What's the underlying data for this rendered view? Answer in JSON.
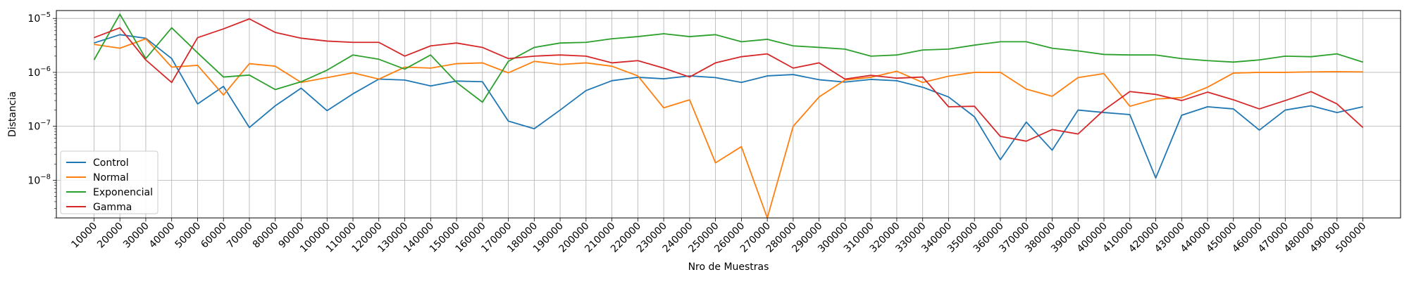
{
  "chart_data": {
    "type": "line",
    "title": "",
    "xlabel": "Nro de Muestras",
    "ylabel": "Distancia",
    "yscale": "log",
    "ylim": [
      2e-09,
      1.4e-05
    ],
    "grid": true,
    "legend_position": "lower-left",
    "x": [
      10000,
      20000,
      30000,
      40000,
      50000,
      60000,
      70000,
      80000,
      90000,
      100000,
      110000,
      120000,
      130000,
      140000,
      150000,
      160000,
      170000,
      180000,
      190000,
      200000,
      210000,
      220000,
      230000,
      240000,
      250000,
      260000,
      270000,
      280000,
      290000,
      300000,
      310000,
      320000,
      330000,
      340000,
      350000,
      360000,
      370000,
      380000,
      390000,
      400000,
      410000,
      420000,
      430000,
      440000,
      450000,
      460000,
      470000,
      480000,
      490000,
      500000
    ],
    "x_tick_labels": [
      "10000",
      "20000",
      "30000",
      "40000",
      "50000",
      "60000",
      "70000",
      "80000",
      "90000",
      "100000",
      "110000",
      "120000",
      "130000",
      "140000",
      "150000",
      "160000",
      "170000",
      "180000",
      "190000",
      "200000",
      "210000",
      "220000",
      "230000",
      "240000",
      "250000",
      "260000",
      "270000",
      "280000",
      "290000",
      "300000",
      "310000",
      "320000",
      "330000",
      "340000",
      "350000",
      "360000",
      "370000",
      "380000",
      "390000",
      "400000",
      "410000",
      "420000",
      "430000",
      "440000",
      "450000",
      "460000",
      "470000",
      "480000",
      "490000",
      "500000"
    ],
    "y_ticks": [
      {
        "value": 1e-08,
        "mantissa": "10",
        "exponent": "−8"
      },
      {
        "value": 1e-07,
        "mantissa": "10",
        "exponent": "−7"
      },
      {
        "value": 1e-06,
        "mantissa": "10",
        "exponent": "−6"
      },
      {
        "value": 1e-05,
        "mantissa": "10",
        "exponent": "−5"
      }
    ],
    "series": [
      {
        "name": "Control",
        "color": "#1f77b4",
        "values": [
          3.5e-06,
          5e-06,
          4.3e-06,
          1.8e-06,
          2.6e-07,
          5.5e-07,
          9.5e-08,
          2.4e-07,
          5.1e-07,
          1.95e-07,
          4e-07,
          7.5e-07,
          7.2e-07,
          5.6e-07,
          6.9e-07,
          6.7e-07,
          1.25e-07,
          9e-08,
          2e-07,
          4.6e-07,
          7e-07,
          8.1e-07,
          7.6e-07,
          8.6e-07,
          8e-07,
          6.5e-07,
          8.6e-07,
          9.1e-07,
          7.3e-07,
          6.6e-07,
          7.4e-07,
          7e-07,
          5.3e-07,
          3.5e-07,
          1.5e-07,
          2.4e-08,
          1.2e-07,
          3.6e-08,
          2e-07,
          1.8e-07,
          1.65e-07,
          1.1e-08,
          1.6e-07,
          2.3e-07,
          2.1e-07,
          8.5e-08,
          2e-07,
          2.4e-07,
          1.8e-07,
          2.3e-07
        ]
      },
      {
        "name": "Normal",
        "color": "#ff7f0e",
        "values": [
          3.3e-06,
          2.8e-06,
          4.2e-06,
          1.25e-06,
          1.35e-06,
          3.8e-07,
          1.45e-06,
          1.3e-06,
          6.5e-07,
          8e-07,
          9.8e-07,
          7.5e-07,
          1.25e-06,
          1.2e-06,
          1.45e-06,
          1.5e-06,
          9.8e-07,
          1.6e-06,
          1.4e-06,
          1.5e-06,
          1.3e-06,
          8.6e-07,
          2.2e-07,
          3.1e-07,
          2.1e-08,
          4.2e-08,
          2e-09,
          1e-07,
          3.5e-07,
          7.2e-07,
          8.1e-07,
          1.05e-06,
          6.5e-07,
          8.5e-07,
          1e-06,
          1e-06,
          4.9e-07,
          3.6e-07,
          8e-07,
          9.5e-07,
          2.35e-07,
          3.2e-07,
          3.4e-07,
          5.3e-07,
          9.7e-07,
          1e-06,
          1e-06,
          1.02e-06,
          1.03e-06,
          1.02e-06
        ]
      },
      {
        "name": "Exponencial",
        "color": "#2ca02c",
        "values": [
          1.7e-06,
          1.2e-05,
          1.8e-06,
          6.7e-06,
          2.3e-06,
          8.2e-07,
          8.9e-07,
          4.8e-07,
          6.7e-07,
          1.1e-06,
          2.1e-06,
          1.75e-06,
          1.15e-06,
          2.1e-06,
          6.5e-07,
          2.8e-07,
          1.6e-06,
          2.9e-06,
          3.5e-06,
          3.6e-06,
          4.2e-06,
          4.6e-06,
          5.2e-06,
          4.6e-06,
          5e-06,
          3.7e-06,
          4.1e-06,
          3.1e-06,
          2.9e-06,
          2.7e-06,
          2e-06,
          2.1e-06,
          2.6e-06,
          2.7e-06,
          3.2e-06,
          3.7e-06,
          3.7e-06,
          2.8e-06,
          2.5e-06,
          2.15e-06,
          2.1e-06,
          2.1e-06,
          1.8e-06,
          1.65e-06,
          1.55e-06,
          1.7e-06,
          2e-06,
          1.95e-06,
          2.2e-06,
          1.55e-06
        ]
      },
      {
        "name": "Gamma",
        "color": "#d62728",
        "values": [
          4.4e-06,
          6.7e-06,
          1.7e-06,
          6.5e-07,
          4.4e-06,
          6.4e-06,
          9.8e-06,
          5.5e-06,
          4.3e-06,
          3.8e-06,
          3.6e-06,
          3.6e-06,
          2e-06,
          3.1e-06,
          3.5e-06,
          2.9e-06,
          1.8e-06,
          2e-06,
          2.1e-06,
          2e-06,
          1.5e-06,
          1.65e-06,
          1.2e-06,
          8.2e-07,
          1.5e-06,
          1.95e-06,
          2.2e-06,
          1.2e-06,
          1.5e-06,
          7.5e-07,
          8.8e-07,
          7.8e-07,
          8.2e-07,
          2.3e-07,
          2.35e-07,
          6.5e-08,
          5.3e-08,
          8.7e-08,
          7.2e-08,
          2e-07,
          4.4e-07,
          3.9e-07,
          3e-07,
          4.3e-07,
          3.1e-07,
          2.1e-07,
          3e-07,
          4.4e-07,
          2.6e-07,
          9.5e-08
        ]
      }
    ]
  }
}
